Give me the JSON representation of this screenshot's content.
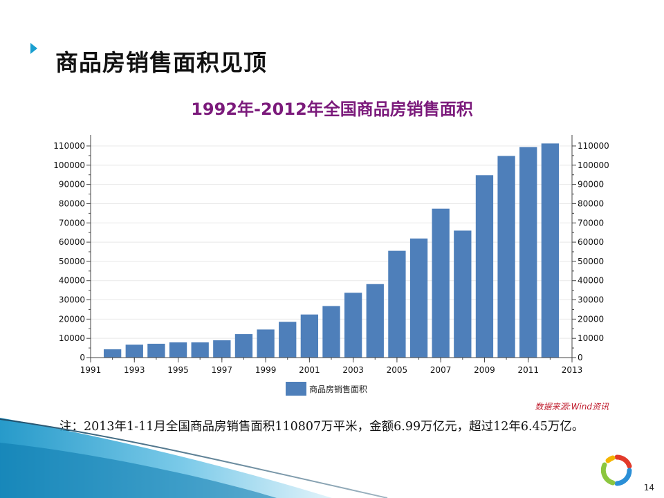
{
  "slide": {
    "title": "商品房销售面积见顶",
    "note": "注：2013年1-11月全国商品房销售面积110807万平米，金额6.99万亿元，超过12年6.45万亿。",
    "source": "数据来源:Wind资讯",
    "page_number": "14"
  },
  "colors": {
    "bar": "#4e7fba",
    "title": "#7b1a7b",
    "source": "#c01d2e",
    "accent": "#1a9fd0"
  },
  "icons": [
    "arrow-bullet-icon",
    "logo-ring-icon"
  ],
  "chart_data": {
    "type": "bar",
    "title": "1992年-2012年全国商品房销售面积",
    "legend_position": "bottom",
    "grid": true,
    "xlim": [
      1991,
      2013
    ],
    "ylim": [
      0,
      110000
    ],
    "x_ticks": [
      "1991",
      "1993",
      "1995",
      "1997",
      "1999",
      "2001",
      "2003",
      "2005",
      "2007",
      "2009",
      "2011",
      "2013"
    ],
    "y_ticks": [
      "0",
      "10000",
      "20000",
      "30000",
      "40000",
      "50000",
      "60000",
      "70000",
      "80000",
      "90000",
      "100000",
      "110000"
    ],
    "series": [
      {
        "name": "商品房销售面积",
        "x": [
          1992,
          1993,
          1994,
          1995,
          1996,
          1997,
          1998,
          1999,
          2000,
          2001,
          2002,
          2003,
          2004,
          2005,
          2006,
          2007,
          2008,
          2009,
          2010,
          2011,
          2012
        ],
        "values": [
          4300,
          6700,
          7200,
          7900,
          7900,
          9000,
          12200,
          14600,
          18600,
          22400,
          26800,
          33700,
          38200,
          55500,
          61900,
          77400,
          66000,
          94800,
          104800,
          109400,
          111300
        ]
      }
    ]
  }
}
